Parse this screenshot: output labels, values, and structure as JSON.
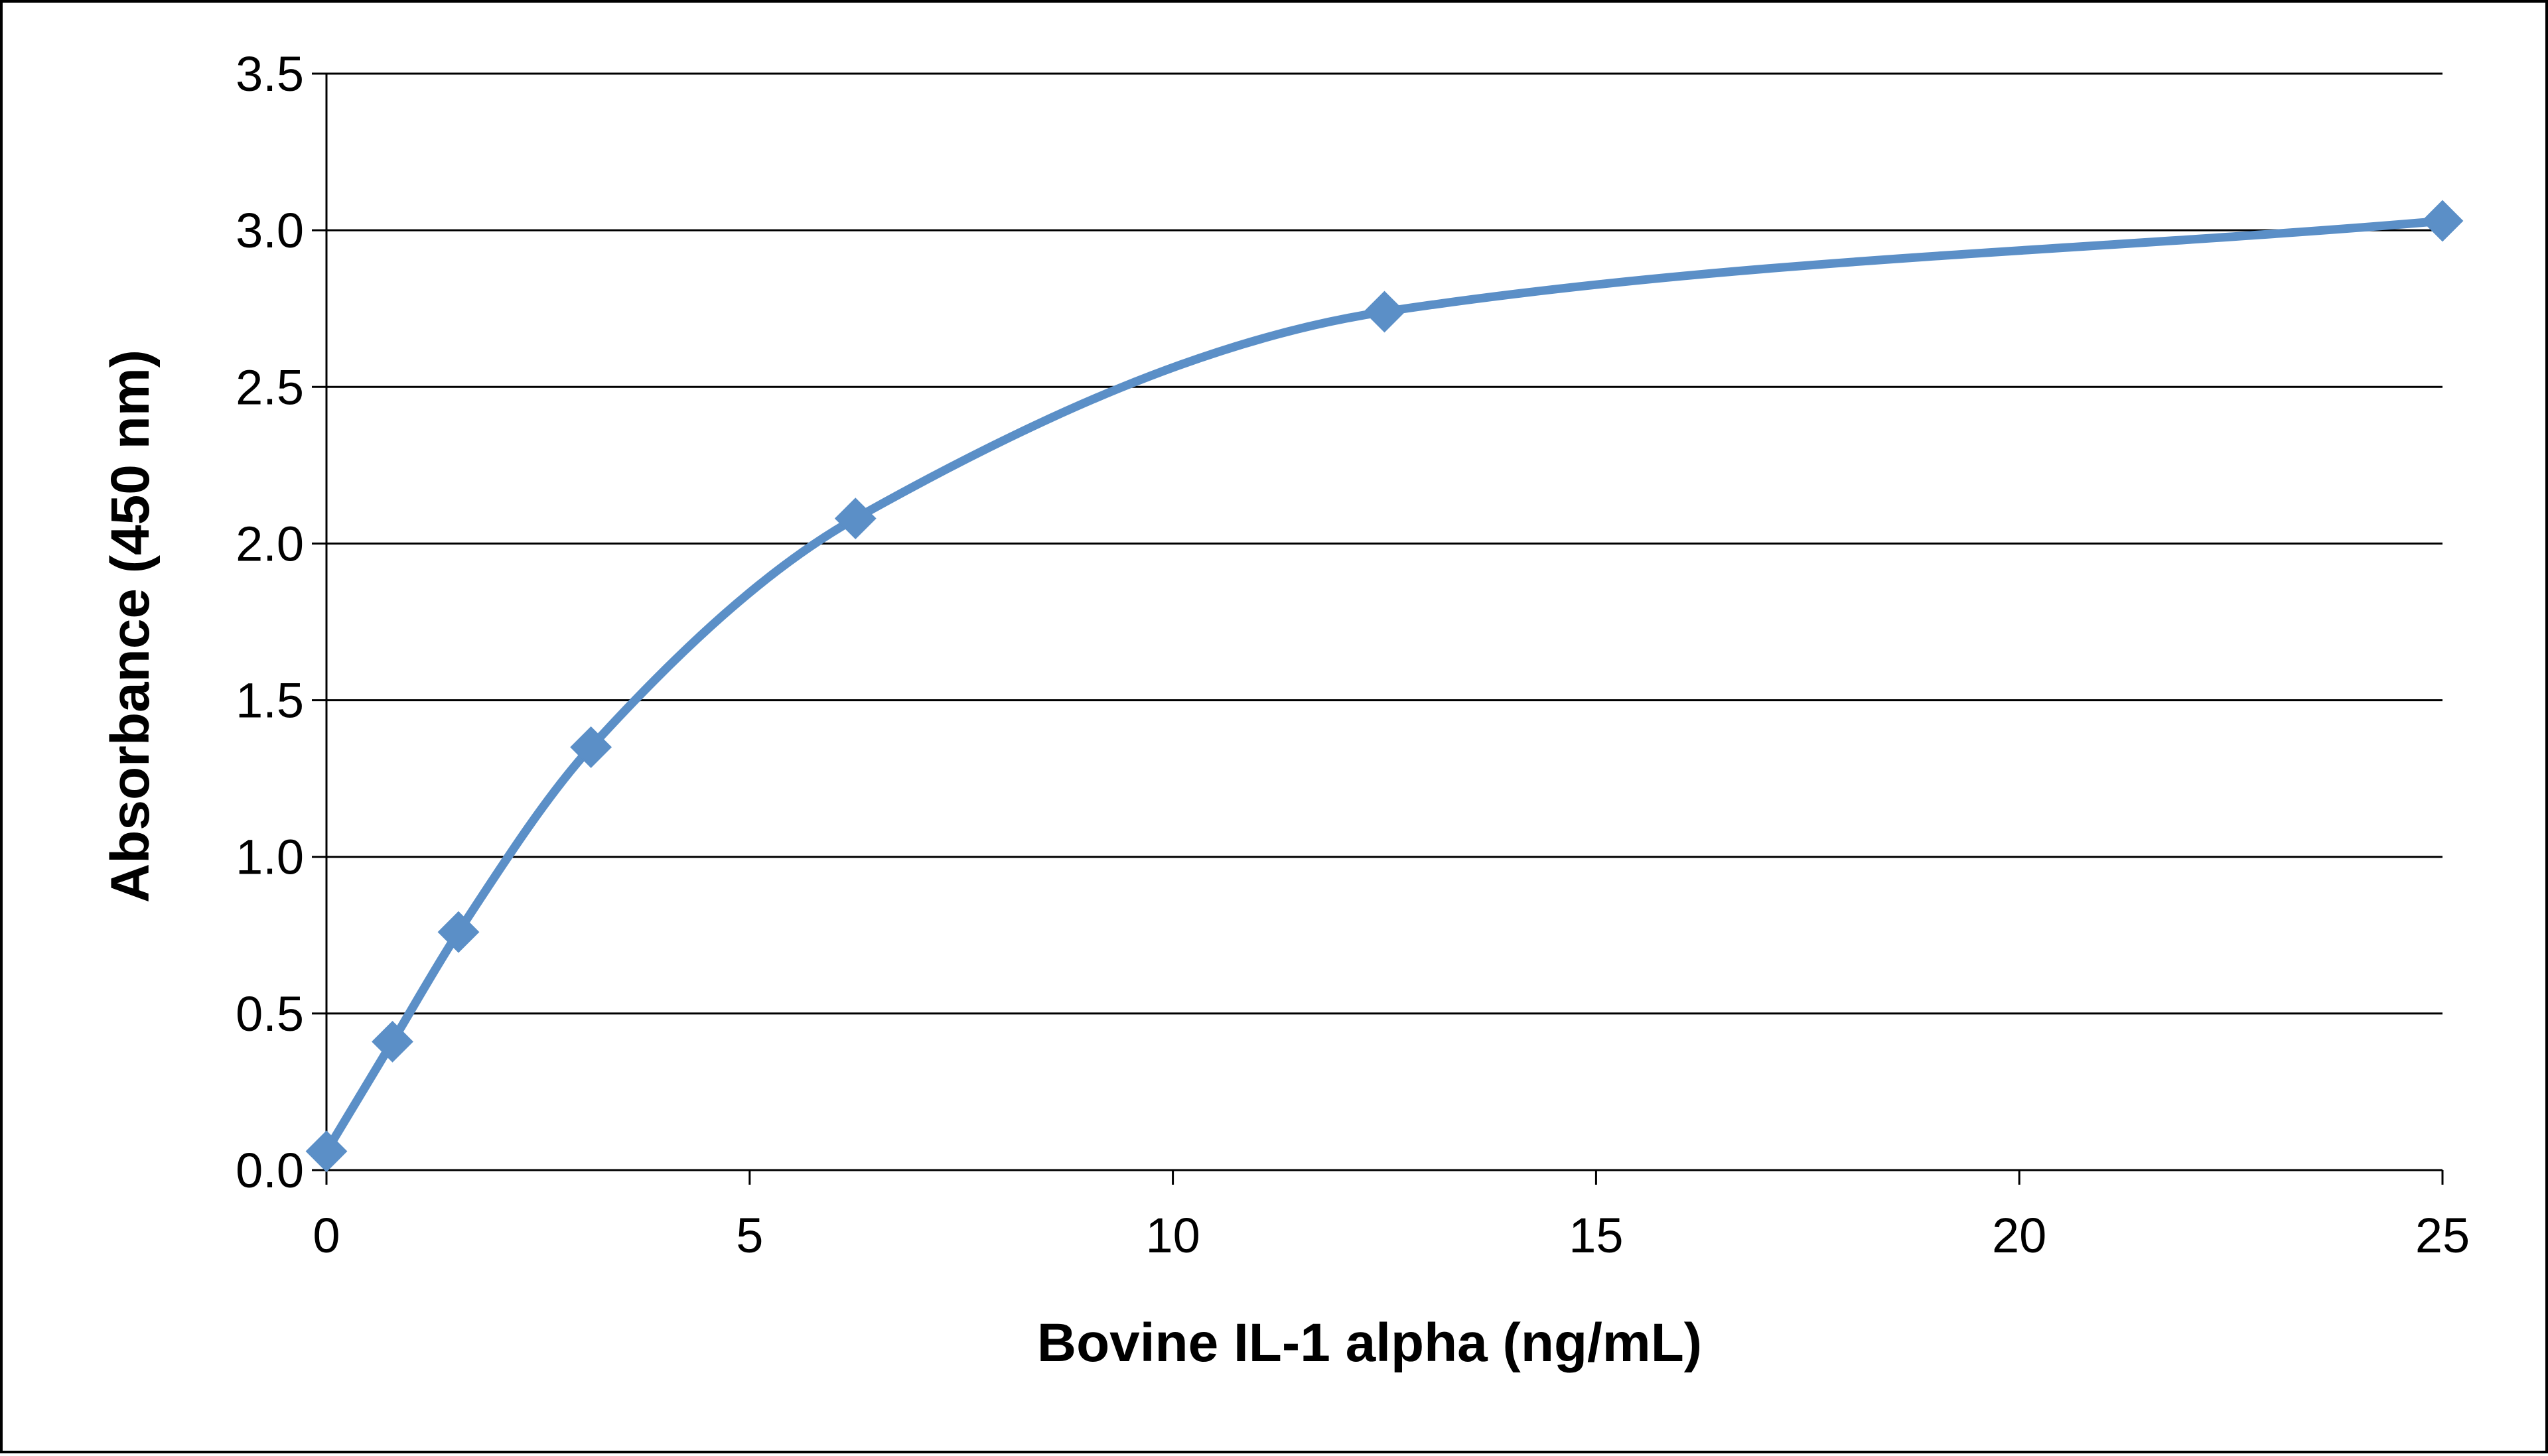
{
  "chart_data": {
    "type": "line",
    "xlabel": "Bovine IL-1 alpha (ng/mL)",
    "ylabel": "Absorbance  (450 nm)",
    "xlim": [
      0,
      25
    ],
    "ylim": [
      0,
      3.5
    ],
    "x_ticks": [
      "0",
      "5",
      "10",
      "15",
      "20",
      "25"
    ],
    "y_ticks": [
      "0.0",
      "0.5",
      "1.0",
      "1.5",
      "2.0",
      "2.5",
      "3.0",
      "3.5"
    ],
    "grid": "horizontal",
    "legend": "none",
    "series": [
      {
        "x": [
          0,
          0.78,
          1.56,
          3.125,
          6.25,
          12.5,
          25
        ],
        "y": [
          0.06,
          0.41,
          0.76,
          1.35,
          2.08,
          2.74,
          3.03
        ],
        "color": "#5B8FC7",
        "marker": "diamond",
        "smooth": true
      }
    ]
  }
}
